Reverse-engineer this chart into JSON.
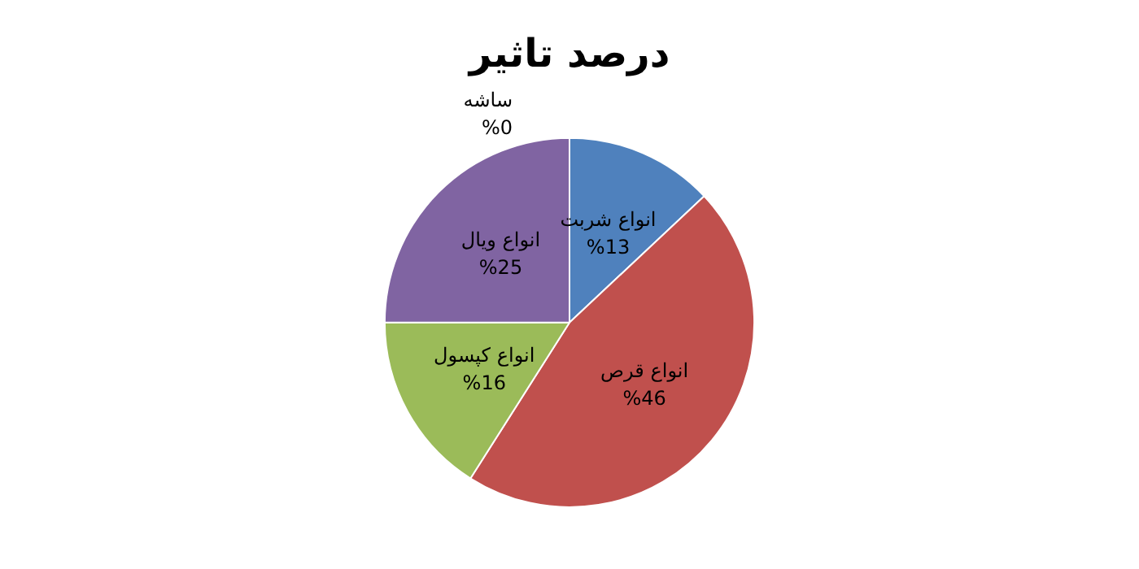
{
  "chart_data": {
    "type": "pie",
    "title": "درصد تاثیر",
    "categories": [
      "انواع شربت",
      "انواع قرص",
      "انواع کپسول",
      "انواع ویال",
      "ساشه"
    ],
    "values": [
      13,
      46,
      16,
      25,
      0
    ],
    "value_labels": [
      "%13",
      "%46",
      "%16",
      "%25",
      "%0"
    ],
    "colors": [
      "#4f81bd",
      "#c0504d",
      "#9bbb59",
      "#8064a2",
      "#4bacc6"
    ],
    "legend": false
  }
}
